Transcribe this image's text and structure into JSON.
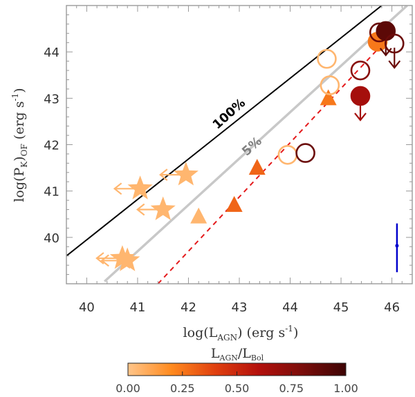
{
  "chart_data": {
    "type": "scatter",
    "xlabel": "log(L_AGN) (erg s^-1)",
    "ylabel": "log(P_K)_OF (erg s^-1)",
    "xlim": [
      39.6,
      46.4
    ],
    "ylim": [
      39.0,
      45.0
    ],
    "xticks": [
      "40",
      "41",
      "42",
      "43",
      "44",
      "45",
      "46"
    ],
    "yticks": [
      "40",
      "41",
      "42",
      "43",
      "44"
    ],
    "grid": false,
    "lines": [
      {
        "label": "100%",
        "color": "#000000",
        "style": "solid",
        "x": [
          39.6,
          45.8
        ],
        "y": [
          39.6,
          45.0
        ]
      },
      {
        "label": "5%",
        "color": "#c8c8c8",
        "style": "solid",
        "x": [
          40.35,
          46.3
        ],
        "y": [
          39.05,
          45.0
        ]
      },
      {
        "label": "",
        "color": "#e41a1c",
        "style": "dashed",
        "x": [
          41.4,
          46.1
        ],
        "y": [
          39.0,
          44.5
        ]
      }
    ],
    "line_labels": [
      {
        "text": "100%",
        "x": 42.85,
        "y": 42.6,
        "color": "#000000"
      },
      {
        "text": "5%",
        "x": 43.3,
        "y": 41.9,
        "color": "#808080"
      }
    ],
    "points": [
      {
        "marker": "star",
        "x": 41.05,
        "y": 41.05,
        "frac": 0.05,
        "filled": true,
        "limit": "left"
      },
      {
        "marker": "star",
        "x": 41.95,
        "y": 41.35,
        "frac": 0.05,
        "filled": true,
        "limit": "left"
      },
      {
        "marker": "star",
        "x": 41.5,
        "y": 40.6,
        "frac": 0.05,
        "filled": true,
        "limit": "left"
      },
      {
        "marker": "star",
        "x": 40.7,
        "y": 39.55,
        "frac": 0.05,
        "filled": true,
        "limit": "left"
      },
      {
        "marker": "star",
        "x": 40.8,
        "y": 39.5,
        "frac": 0.05,
        "filled": true,
        "limit": "left"
      },
      {
        "marker": "triangle",
        "x": 42.2,
        "y": 40.45,
        "frac": 0.05,
        "filled": true,
        "limit": ""
      },
      {
        "marker": "triangle",
        "x": 42.9,
        "y": 40.7,
        "frac": 0.3,
        "filled": true,
        "limit": ""
      },
      {
        "marker": "triangle",
        "x": 43.35,
        "y": 41.5,
        "frac": 0.3,
        "filled": true,
        "limit": ""
      },
      {
        "marker": "triangle",
        "x": 44.75,
        "y": 43.0,
        "frac": 0.25,
        "filled": true,
        "limit": ""
      },
      {
        "marker": "circle",
        "x": 43.95,
        "y": 41.78,
        "frac": 0.05,
        "filled": false,
        "limit": ""
      },
      {
        "marker": "circle",
        "x": 44.3,
        "y": 41.82,
        "frac": 0.85,
        "filled": false,
        "limit": ""
      },
      {
        "marker": "circle",
        "x": 44.72,
        "y": 43.85,
        "frac": 0.05,
        "filled": false,
        "limit": ""
      },
      {
        "marker": "circle",
        "x": 44.78,
        "y": 43.28,
        "frac": 0.05,
        "filled": false,
        "limit": ""
      },
      {
        "marker": "circle",
        "x": 45.38,
        "y": 43.05,
        "frac": 0.65,
        "filled": true,
        "limit": "down"
      },
      {
        "marker": "circle",
        "x": 45.38,
        "y": 43.6,
        "frac": 0.75,
        "filled": false,
        "limit": ""
      },
      {
        "marker": "circle",
        "x": 45.72,
        "y": 44.22,
        "frac": 0.25,
        "filled": true,
        "limit": ""
      },
      {
        "marker": "circle",
        "x": 45.75,
        "y": 44.42,
        "frac": 0.85,
        "filled": false,
        "limit": ""
      },
      {
        "marker": "circle",
        "x": 45.88,
        "y": 44.45,
        "frac": 0.9,
        "filled": true,
        "limit": "down"
      },
      {
        "marker": "circle",
        "x": 46.05,
        "y": 44.18,
        "frac": 0.85,
        "filled": false,
        "limit": "down"
      }
    ],
    "error_bar": {
      "x": 46.1,
      "y": 39.82,
      "ylow": 39.25,
      "yhigh": 40.3,
      "color": "#0000cc"
    },
    "colorbar": {
      "label": "L_AGN/L_Bol",
      "ticks": [
        "0.00",
        "0.25",
        "0.50",
        "0.75",
        "1.00"
      ],
      "stops": [
        "#ffc58a",
        "#ff8a1e",
        "#e0400f",
        "#b3100c",
        "#7a0d0a",
        "#3d0404"
      ]
    }
  }
}
